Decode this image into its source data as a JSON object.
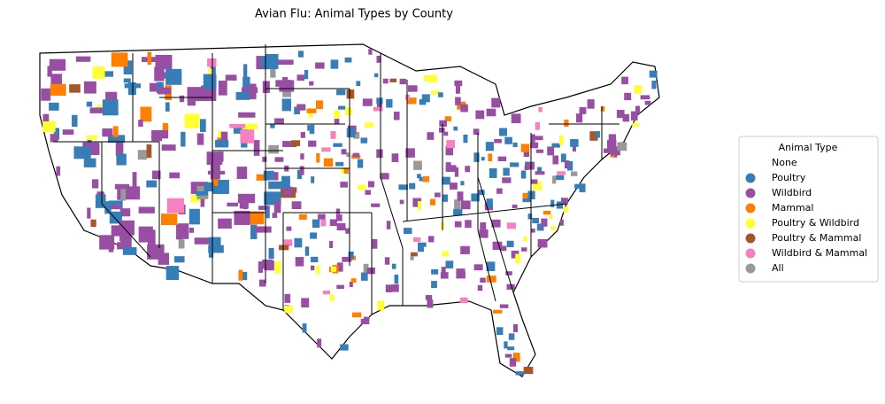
{
  "title": "Avian Flu: Animal Types by County",
  "legend": {
    "title": "Animal Type",
    "position": "right",
    "entries": [
      {
        "name": "None",
        "color": "#ffffff"
      },
      {
        "name": "Poultry",
        "color": "#377eb8"
      },
      {
        "name": "Wildbird",
        "color": "#984ea3"
      },
      {
        "name": "Mammal",
        "color": "#ff7f00"
      },
      {
        "name": "Poultry & Wildbird",
        "color": "#ffff33"
      },
      {
        "name": "Poultry & Mammal",
        "color": "#a65628"
      },
      {
        "name": "Wildbird & Mammal",
        "color": "#f781bf"
      },
      {
        "name": "All",
        "color": "#999999"
      }
    ]
  }
}
